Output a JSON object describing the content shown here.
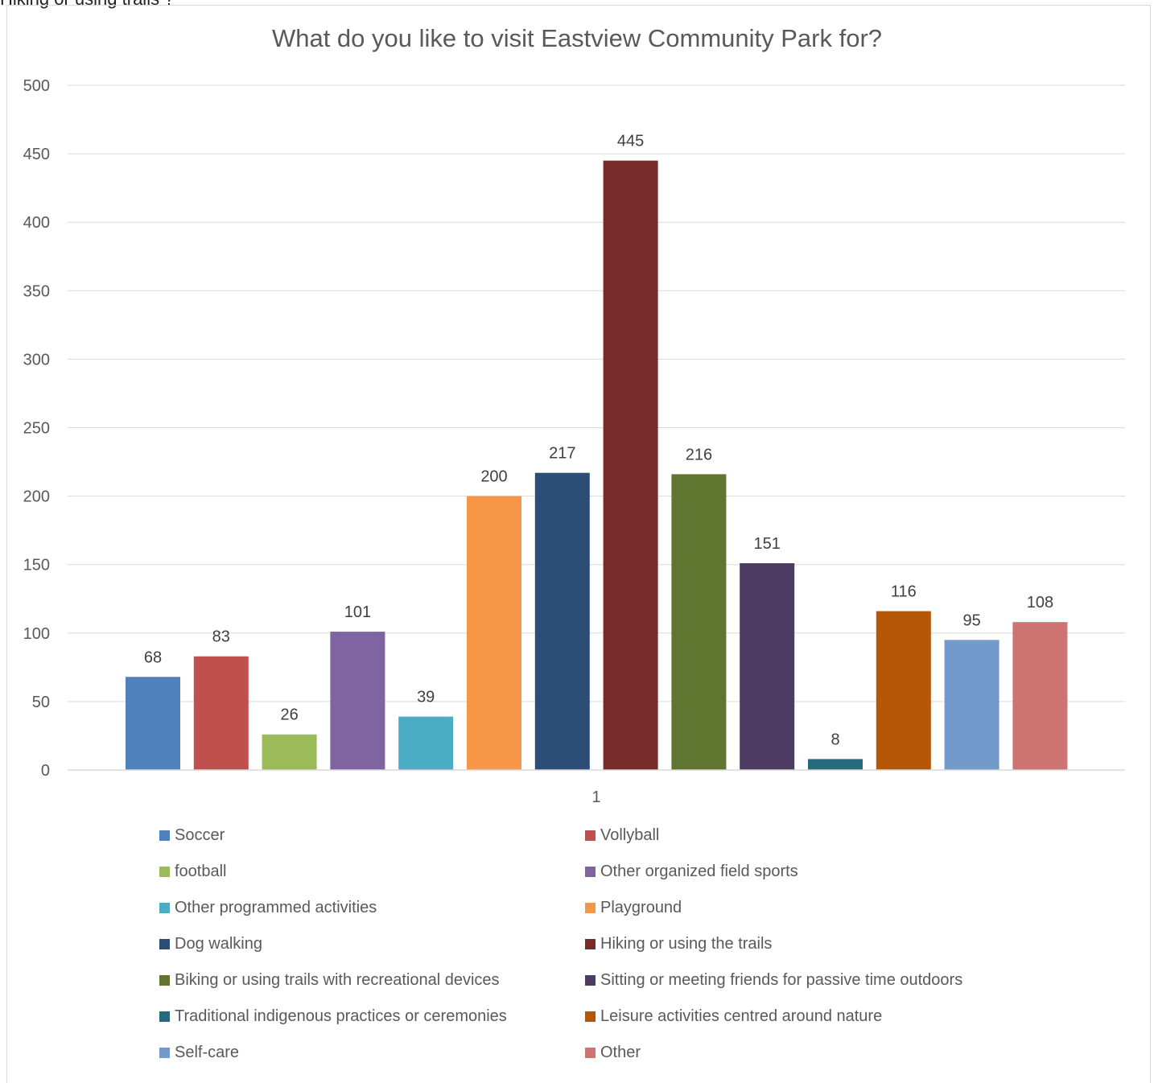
{
  "top_caption": "Hiking or using trails ?",
  "chart_data": {
    "type": "bar",
    "title": "What do you like to visit Eastview Community Park for?",
    "categories": [
      "1"
    ],
    "ylim": [
      0,
      500
    ],
    "yticks": [
      0,
      50,
      100,
      150,
      200,
      250,
      300,
      350,
      400,
      450,
      500
    ],
    "grid": true,
    "legend_position": "bottom",
    "series": [
      {
        "name": "Soccer",
        "values": [
          68
        ],
        "color": "#4f81bd"
      },
      {
        "name": "Vollyball",
        "values": [
          83
        ],
        "color": "#c0504d"
      },
      {
        "name": "football",
        "values": [
          26
        ],
        "color": "#9bbb59"
      },
      {
        "name": "Other organized field sports",
        "values": [
          101
        ],
        "color": "#8064a2"
      },
      {
        "name": "Other programmed activities",
        "values": [
          39
        ],
        "color": "#4bacc6"
      },
      {
        "name": "Playground",
        "values": [
          200
        ],
        "color": "#f79646"
      },
      {
        "name": "Dog walking",
        "values": [
          217
        ],
        "color": "#2c4d75"
      },
      {
        "name": "Hiking or using the trails",
        "values": [
          445
        ],
        "color": "#772c2a"
      },
      {
        "name": "Biking or using trails with recreational devices",
        "values": [
          216
        ],
        "color": "#5f7530"
      },
      {
        "name": "Sitting or meeting friends for passive time outdoors",
        "values": [
          151
        ],
        "color": "#4d3b62"
      },
      {
        "name": "Traditional indigenous practices or ceremonies",
        "values": [
          8
        ],
        "color": "#276a7c"
      },
      {
        "name": "Leisure activities centred around nature",
        "values": [
          116
        ],
        "color": "#b65708"
      },
      {
        "name": "Self-care",
        "values": [
          95
        ],
        "color": "#729aca"
      },
      {
        "name": "Other",
        "values": [
          108
        ],
        "color": "#cd7371"
      }
    ]
  }
}
